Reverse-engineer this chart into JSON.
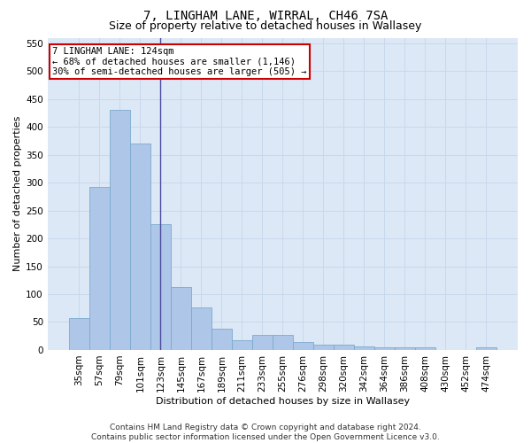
{
  "title": "7, LINGHAM LANE, WIRRAL, CH46 7SA",
  "subtitle": "Size of property relative to detached houses in Wallasey",
  "xlabel": "Distribution of detached houses by size in Wallasey",
  "ylabel": "Number of detached properties",
  "categories": [
    "35sqm",
    "57sqm",
    "79sqm",
    "101sqm",
    "123sqm",
    "145sqm",
    "167sqm",
    "189sqm",
    "211sqm",
    "233sqm",
    "255sqm",
    "276sqm",
    "298sqm",
    "320sqm",
    "342sqm",
    "364sqm",
    "386sqm",
    "408sqm",
    "430sqm",
    "452sqm",
    "474sqm"
  ],
  "values": [
    57,
    293,
    430,
    370,
    226,
    113,
    76,
    38,
    17,
    27,
    27,
    15,
    10,
    10,
    7,
    4,
    4,
    5,
    0,
    0,
    5
  ],
  "bar_color": "#aec6e8",
  "bar_edge_color": "#7aaad0",
  "vline_color": "#4a4a9c",
  "vline_x_index": 4,
  "annotation_text": "7 LINGHAM LANE: 124sqm\n← 68% of detached houses are smaller (1,146)\n30% of semi-detached houses are larger (505) →",
  "annotation_box_facecolor": "#ffffff",
  "annotation_box_edgecolor": "#cc0000",
  "ylim": [
    0,
    560
  ],
  "yticks": [
    0,
    50,
    100,
    150,
    200,
    250,
    300,
    350,
    400,
    450,
    500,
    550
  ],
  "grid_color": "#c8d8ec",
  "background_color": "#dce8f5",
  "footer_text": "Contains HM Land Registry data © Crown copyright and database right 2024.\nContains public sector information licensed under the Open Government Licence v3.0.",
  "title_fontsize": 10,
  "subtitle_fontsize": 9,
  "axis_label_fontsize": 8,
  "tick_fontsize": 7.5,
  "annotation_fontsize": 7.5,
  "footer_fontsize": 6.5
}
